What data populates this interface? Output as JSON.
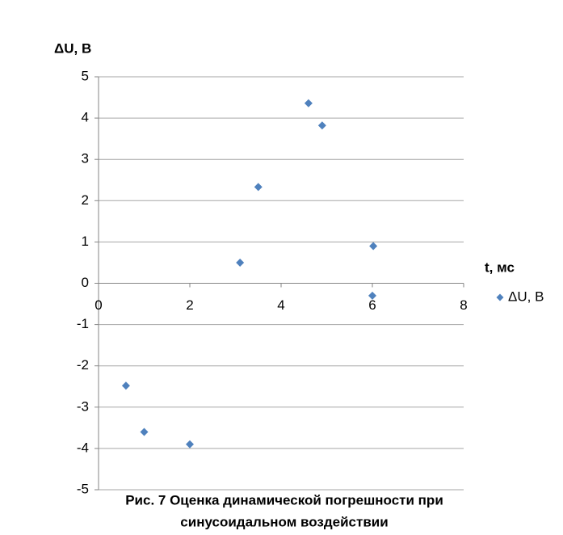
{
  "chart_data": {
    "type": "scatter",
    "y_label": "ΔU, В",
    "x_label": "t, мс",
    "caption": [
      "Рис. 7 Оценка динамической погрешности при",
      "синусоидальном воздействии"
    ],
    "series": [
      {
        "name": "ΔU, В",
        "color": "#4f81bd",
        "x": [
          0.6,
          1.0,
          2.0,
          3.1,
          3.5,
          4.6,
          4.9,
          6.02,
          6.0
        ],
        "values": [
          -2.48,
          -3.6,
          -3.9,
          0.5,
          2.33,
          4.36,
          3.82,
          0.9,
          -0.3
        ]
      }
    ],
    "xlim": [
      0,
      8
    ],
    "xticks": [
      0,
      2,
      4,
      6,
      8
    ],
    "ylim": [
      -5,
      5
    ],
    "yticks": [
      -5,
      -4,
      -3,
      -2,
      -1,
      0,
      1,
      2,
      3,
      4,
      5
    ],
    "grid": true,
    "legend": "right"
  }
}
